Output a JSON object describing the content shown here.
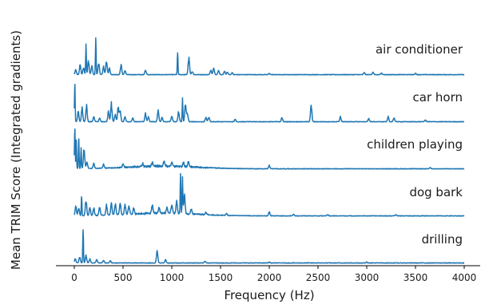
{
  "chart_data": {
    "type": "line",
    "xlabel": "Frequency (Hz)",
    "ylabel": "Mean TRIM Score (Integrated gradients)",
    "xlim": [
      -100,
      4100
    ],
    "xticks": [
      0,
      500,
      1000,
      1500,
      2000,
      2500,
      3000,
      3500,
      4000
    ],
    "xtick_labels": [
      "0",
      "500",
      "1000",
      "1500",
      "2000",
      "2500",
      "3000",
      "3500",
      "4000"
    ],
    "line_color": "#1f77b4",
    "grid": false,
    "layout": "stacked ridgeline, one trace per class, shared frequency axis, no y ticks",
    "series": [
      {
        "name": "air conditioner",
        "peaks": [
          {
            "x": 15,
            "y": 0.12
          },
          {
            "x": 60,
            "y": 0.25
          },
          {
            "x": 95,
            "y": 0.18
          },
          {
            "x": 120,
            "y": 0.8
          },
          {
            "x": 145,
            "y": 0.35
          },
          {
            "x": 180,
            "y": 0.22
          },
          {
            "x": 220,
            "y": 0.95
          },
          {
            "x": 250,
            "y": 0.3
          },
          {
            "x": 300,
            "y": 0.2
          },
          {
            "x": 330,
            "y": 0.35
          },
          {
            "x": 360,
            "y": 0.15
          },
          {
            "x": 480,
            "y": 0.25
          },
          {
            "x": 520,
            "y": 0.1
          },
          {
            "x": 730,
            "y": 0.12
          },
          {
            "x": 1060,
            "y": 0.55
          },
          {
            "x": 1175,
            "y": 0.43
          },
          {
            "x": 1210,
            "y": 0.08
          },
          {
            "x": 1400,
            "y": 0.12
          },
          {
            "x": 1430,
            "y": 0.16
          },
          {
            "x": 1480,
            "y": 0.1
          },
          {
            "x": 1540,
            "y": 0.08
          },
          {
            "x": 1570,
            "y": 0.06
          },
          {
            "x": 1620,
            "y": 0.05
          },
          {
            "x": 2000,
            "y": 0.03
          },
          {
            "x": 2975,
            "y": 0.05
          },
          {
            "x": 3065,
            "y": 0.06
          },
          {
            "x": 3150,
            "y": 0.04
          },
          {
            "x": 3500,
            "y": 0.03
          }
        ]
      },
      {
        "name": "car horn",
        "peaks": [
          {
            "x": 5,
            "y": 0.95
          },
          {
            "x": 40,
            "y": 0.25
          },
          {
            "x": 80,
            "y": 0.35
          },
          {
            "x": 125,
            "y": 0.4
          },
          {
            "x": 200,
            "y": 0.12
          },
          {
            "x": 260,
            "y": 0.1
          },
          {
            "x": 350,
            "y": 0.25
          },
          {
            "x": 380,
            "y": 0.45
          },
          {
            "x": 420,
            "y": 0.18
          },
          {
            "x": 450,
            "y": 0.35
          },
          {
            "x": 470,
            "y": 0.3
          },
          {
            "x": 520,
            "y": 0.12
          },
          {
            "x": 600,
            "y": 0.1
          },
          {
            "x": 730,
            "y": 0.2
          },
          {
            "x": 760,
            "y": 0.12
          },
          {
            "x": 860,
            "y": 0.28
          },
          {
            "x": 900,
            "y": 0.1
          },
          {
            "x": 1000,
            "y": 0.15
          },
          {
            "x": 1070,
            "y": 0.25
          },
          {
            "x": 1110,
            "y": 0.55
          },
          {
            "x": 1140,
            "y": 0.45
          },
          {
            "x": 1160,
            "y": 0.2
          },
          {
            "x": 1350,
            "y": 0.1
          },
          {
            "x": 1380,
            "y": 0.12
          },
          {
            "x": 1650,
            "y": 0.06
          },
          {
            "x": 2130,
            "y": 0.1
          },
          {
            "x": 2430,
            "y": 0.4
          },
          {
            "x": 2730,
            "y": 0.12
          },
          {
            "x": 3020,
            "y": 0.08
          },
          {
            "x": 3220,
            "y": 0.12
          },
          {
            "x": 3280,
            "y": 0.1
          },
          {
            "x": 3600,
            "y": 0.04
          }
        ]
      },
      {
        "name": "children playing",
        "peaks": [
          {
            "x": 5,
            "y": 1.0
          },
          {
            "x": 20,
            "y": 0.7
          },
          {
            "x": 45,
            "y": 0.85
          },
          {
            "x": 70,
            "y": 0.55
          },
          {
            "x": 100,
            "y": 0.5
          },
          {
            "x": 130,
            "y": 0.18
          },
          {
            "x": 200,
            "y": 0.12
          },
          {
            "x": 300,
            "y": 0.1
          },
          {
            "x": 500,
            "y": 0.08
          },
          {
            "x": 700,
            "y": 0.08
          },
          {
            "x": 800,
            "y": 0.1
          },
          {
            "x": 920,
            "y": 0.12
          },
          {
            "x": 1000,
            "y": 0.1
          },
          {
            "x": 1120,
            "y": 0.1
          },
          {
            "x": 1170,
            "y": 0.12
          },
          {
            "x": 2000,
            "y": 0.08
          },
          {
            "x": 3650,
            "y": 0.03
          }
        ]
      },
      {
        "name": "dog bark",
        "peaks": [
          {
            "x": 15,
            "y": 0.25
          },
          {
            "x": 45,
            "y": 0.2
          },
          {
            "x": 75,
            "y": 0.55
          },
          {
            "x": 120,
            "y": 0.4
          },
          {
            "x": 160,
            "y": 0.2
          },
          {
            "x": 200,
            "y": 0.18
          },
          {
            "x": 260,
            "y": 0.22
          },
          {
            "x": 330,
            "y": 0.25
          },
          {
            "x": 380,
            "y": 0.3
          },
          {
            "x": 420,
            "y": 0.28
          },
          {
            "x": 470,
            "y": 0.3
          },
          {
            "x": 520,
            "y": 0.25
          },
          {
            "x": 560,
            "y": 0.2
          },
          {
            "x": 610,
            "y": 0.15
          },
          {
            "x": 800,
            "y": 0.2
          },
          {
            "x": 870,
            "y": 0.15
          },
          {
            "x": 950,
            "y": 0.15
          },
          {
            "x": 1000,
            "y": 0.22
          },
          {
            "x": 1050,
            "y": 0.3
          },
          {
            "x": 1090,
            "y": 0.95
          },
          {
            "x": 1110,
            "y": 0.9
          },
          {
            "x": 1130,
            "y": 0.45
          },
          {
            "x": 1200,
            "y": 0.12
          },
          {
            "x": 1350,
            "y": 0.06
          },
          {
            "x": 1560,
            "y": 0.05
          },
          {
            "x": 2000,
            "y": 0.1
          },
          {
            "x": 2250,
            "y": 0.04
          },
          {
            "x": 2600,
            "y": 0.03
          },
          {
            "x": 3300,
            "y": 0.03
          }
        ]
      },
      {
        "name": "drilling",
        "peaks": [
          {
            "x": 10,
            "y": 0.1
          },
          {
            "x": 55,
            "y": 0.15
          },
          {
            "x": 90,
            "y": 0.95
          },
          {
            "x": 120,
            "y": 0.2
          },
          {
            "x": 160,
            "y": 0.1
          },
          {
            "x": 230,
            "y": 0.08
          },
          {
            "x": 300,
            "y": 0.06
          },
          {
            "x": 370,
            "y": 0.05
          },
          {
            "x": 850,
            "y": 0.3
          },
          {
            "x": 935,
            "y": 0.08
          },
          {
            "x": 1340,
            "y": 0.04
          },
          {
            "x": 2000,
            "y": 0.02
          },
          {
            "x": 3000,
            "y": 0.02
          }
        ]
      }
    ]
  }
}
